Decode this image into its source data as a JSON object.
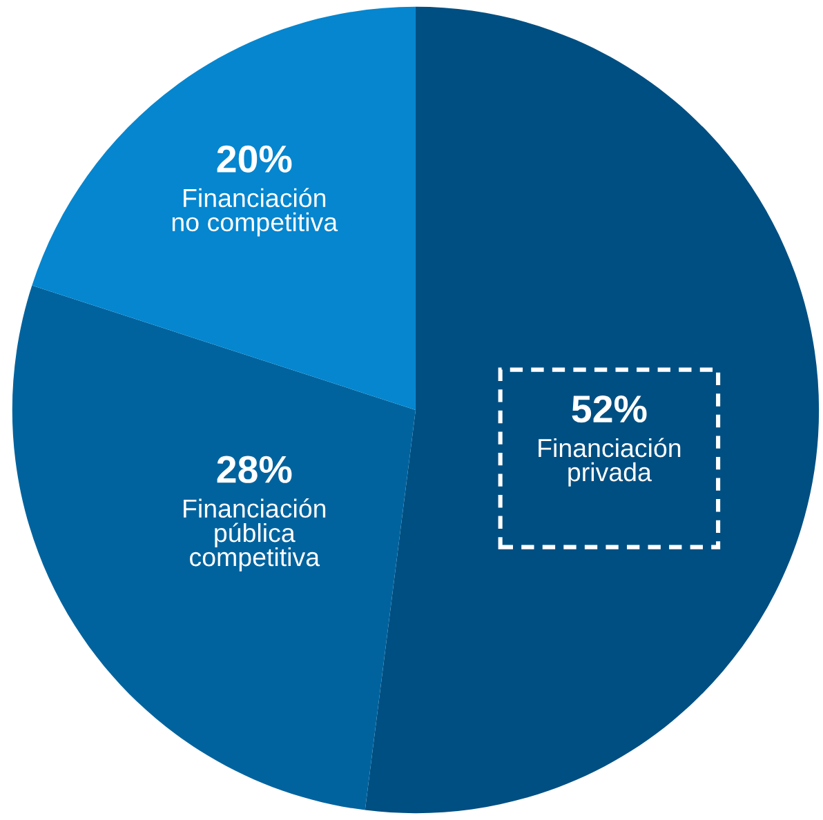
{
  "chart_data": {
    "type": "pie",
    "categories": [
      "Financiación\nprivada",
      "Financiación\npública\ncompetitiva",
      "Financiación\nno competitiva"
    ],
    "values": [
      52,
      28,
      20
    ],
    "colors": [
      "#004f82",
      "#01639e",
      "#0586cf"
    ],
    "value_labels": [
      "52%",
      "28%",
      "20%"
    ]
  }
}
